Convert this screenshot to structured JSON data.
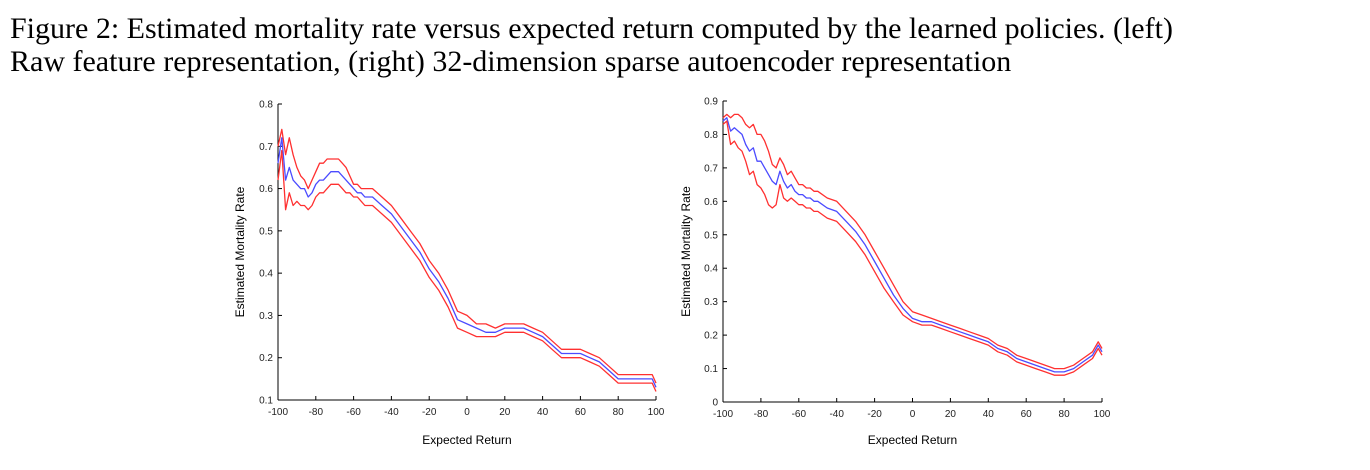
{
  "figure": {
    "caption_line1": "Figure 2: Estimated mortality rate versus expected return computed by the learned policies. (left)",
    "caption_line2": "Raw feature representation, (right) 32-dimension sparse autoencoder representation"
  },
  "colors": {
    "center_line": "#4b4bff",
    "bound_line": "#ff3030",
    "axis": "#000000"
  },
  "chart_data": [
    {
      "type": "line",
      "xlabel": "Expected Return",
      "ylabel": "Estimated Mortality Rate",
      "xlim": [
        -100,
        100
      ],
      "ylim": [
        0.1,
        0.8
      ],
      "xticks": [
        -100,
        -80,
        -60,
        -40,
        -20,
        0,
        20,
        40,
        60,
        80,
        100
      ],
      "yticks": [
        0.1,
        0.2,
        0.3,
        0.4,
        0.5,
        0.6,
        0.7,
        0.8
      ],
      "xtick_labels": [
        "-100",
        "-80",
        "-60",
        "-40",
        "-20",
        "0",
        "20",
        "40",
        "60",
        "80",
        "100"
      ],
      "ytick_labels": [
        "0.1",
        "0.2",
        "0.3",
        "0.4",
        "0.5",
        "0.6",
        "0.7",
        "0.8"
      ],
      "grid": false,
      "x": [
        -100,
        -98,
        -96,
        -94,
        -92,
        -90,
        -88,
        -86,
        -84,
        -82,
        -80,
        -78,
        -76,
        -74,
        -72,
        -70,
        -68,
        -66,
        -64,
        -62,
        -60,
        -58,
        -56,
        -54,
        -52,
        -50,
        -45,
        -40,
        -35,
        -30,
        -25,
        -20,
        -15,
        -10,
        -5,
        0,
        5,
        10,
        15,
        20,
        25,
        30,
        35,
        40,
        45,
        50,
        55,
        60,
        65,
        70,
        75,
        80,
        85,
        90,
        95,
        98,
        100
      ],
      "series": [
        {
          "role": "upper",
          "values": [
            0.7,
            0.74,
            0.68,
            0.72,
            0.68,
            0.65,
            0.63,
            0.62,
            0.6,
            0.62,
            0.64,
            0.66,
            0.66,
            0.67,
            0.67,
            0.67,
            0.67,
            0.66,
            0.65,
            0.63,
            0.61,
            0.61,
            0.6,
            0.6,
            0.6,
            0.6,
            0.58,
            0.56,
            0.53,
            0.5,
            0.47,
            0.43,
            0.4,
            0.36,
            0.31,
            0.3,
            0.28,
            0.28,
            0.27,
            0.28,
            0.28,
            0.28,
            0.27,
            0.26,
            0.24,
            0.22,
            0.22,
            0.22,
            0.21,
            0.2,
            0.18,
            0.16,
            0.16,
            0.16,
            0.16,
            0.16,
            0.14
          ]
        },
        {
          "role": "estimate",
          "values": [
            0.66,
            0.72,
            0.62,
            0.65,
            0.62,
            0.61,
            0.6,
            0.6,
            0.58,
            0.59,
            0.61,
            0.62,
            0.62,
            0.63,
            0.64,
            0.64,
            0.64,
            0.63,
            0.62,
            0.61,
            0.6,
            0.59,
            0.59,
            0.58,
            0.58,
            0.58,
            0.56,
            0.54,
            0.51,
            0.48,
            0.45,
            0.41,
            0.38,
            0.34,
            0.29,
            0.28,
            0.27,
            0.26,
            0.26,
            0.27,
            0.27,
            0.27,
            0.26,
            0.25,
            0.23,
            0.21,
            0.21,
            0.21,
            0.2,
            0.19,
            0.17,
            0.15,
            0.15,
            0.15,
            0.15,
            0.15,
            0.13
          ]
        },
        {
          "role": "lower",
          "values": [
            0.62,
            0.69,
            0.55,
            0.59,
            0.56,
            0.57,
            0.56,
            0.56,
            0.55,
            0.56,
            0.58,
            0.59,
            0.59,
            0.6,
            0.61,
            0.61,
            0.61,
            0.6,
            0.59,
            0.59,
            0.58,
            0.58,
            0.57,
            0.56,
            0.56,
            0.56,
            0.54,
            0.52,
            0.49,
            0.46,
            0.43,
            0.39,
            0.36,
            0.32,
            0.27,
            0.26,
            0.25,
            0.25,
            0.25,
            0.26,
            0.26,
            0.26,
            0.25,
            0.24,
            0.22,
            0.2,
            0.2,
            0.2,
            0.19,
            0.18,
            0.16,
            0.14,
            0.14,
            0.14,
            0.14,
            0.14,
            0.12
          ]
        }
      ]
    },
    {
      "type": "line",
      "xlabel": "Expected Return",
      "ylabel": "Estimated Mortality Rate",
      "xlim": [
        -100,
        100
      ],
      "ylim": [
        0,
        0.9
      ],
      "xticks": [
        -100,
        -80,
        -60,
        -40,
        -20,
        0,
        20,
        40,
        60,
        80,
        100
      ],
      "yticks": [
        0,
        0.1,
        0.2,
        0.3,
        0.4,
        0.5,
        0.6,
        0.7,
        0.8,
        0.9
      ],
      "xtick_labels": [
        "-100",
        "-80",
        "-60",
        "-40",
        "-20",
        "0",
        "20",
        "40",
        "60",
        "80",
        "100"
      ],
      "ytick_labels": [
        "0",
        "0.1",
        "0.2",
        "0.3",
        "0.4",
        "0.5",
        "0.6",
        "0.7",
        "0.8",
        "0.9"
      ],
      "grid": false,
      "x": [
        -100,
        -98,
        -96,
        -94,
        -92,
        -90,
        -88,
        -86,
        -84,
        -82,
        -80,
        -78,
        -76,
        -74,
        -72,
        -70,
        -68,
        -66,
        -64,
        -62,
        -60,
        -58,
        -56,
        -54,
        -52,
        -50,
        -45,
        -40,
        -35,
        -30,
        -25,
        -20,
        -15,
        -10,
        -5,
        0,
        5,
        10,
        15,
        20,
        25,
        30,
        35,
        40,
        45,
        50,
        55,
        60,
        65,
        70,
        75,
        80,
        85,
        90,
        95,
        98,
        100
      ],
      "series": [
        {
          "role": "upper",
          "values": [
            0.85,
            0.86,
            0.85,
            0.86,
            0.86,
            0.85,
            0.83,
            0.82,
            0.83,
            0.8,
            0.8,
            0.78,
            0.75,
            0.71,
            0.7,
            0.73,
            0.71,
            0.68,
            0.69,
            0.67,
            0.65,
            0.65,
            0.64,
            0.64,
            0.63,
            0.63,
            0.61,
            0.6,
            0.57,
            0.54,
            0.5,
            0.45,
            0.4,
            0.35,
            0.3,
            0.27,
            0.26,
            0.25,
            0.24,
            0.23,
            0.22,
            0.21,
            0.2,
            0.19,
            0.17,
            0.16,
            0.14,
            0.13,
            0.12,
            0.11,
            0.1,
            0.1,
            0.11,
            0.13,
            0.15,
            0.18,
            0.16
          ]
        },
        {
          "role": "estimate",
          "values": [
            0.84,
            0.85,
            0.81,
            0.82,
            0.81,
            0.8,
            0.77,
            0.75,
            0.76,
            0.72,
            0.72,
            0.7,
            0.68,
            0.66,
            0.65,
            0.69,
            0.66,
            0.64,
            0.65,
            0.63,
            0.62,
            0.62,
            0.61,
            0.61,
            0.6,
            0.6,
            0.58,
            0.57,
            0.54,
            0.51,
            0.47,
            0.42,
            0.37,
            0.32,
            0.28,
            0.25,
            0.24,
            0.24,
            0.23,
            0.22,
            0.21,
            0.2,
            0.19,
            0.18,
            0.16,
            0.15,
            0.13,
            0.12,
            0.11,
            0.1,
            0.09,
            0.09,
            0.1,
            0.12,
            0.14,
            0.17,
            0.15
          ]
        },
        {
          "role": "lower",
          "values": [
            0.83,
            0.84,
            0.77,
            0.78,
            0.76,
            0.75,
            0.72,
            0.68,
            0.69,
            0.65,
            0.64,
            0.62,
            0.59,
            0.58,
            0.59,
            0.65,
            0.61,
            0.6,
            0.61,
            0.6,
            0.59,
            0.59,
            0.58,
            0.58,
            0.57,
            0.57,
            0.55,
            0.54,
            0.51,
            0.48,
            0.44,
            0.39,
            0.34,
            0.3,
            0.26,
            0.24,
            0.23,
            0.23,
            0.22,
            0.21,
            0.2,
            0.19,
            0.18,
            0.17,
            0.15,
            0.14,
            0.12,
            0.11,
            0.1,
            0.09,
            0.08,
            0.08,
            0.09,
            0.11,
            0.13,
            0.16,
            0.14
          ]
        }
      ]
    }
  ]
}
